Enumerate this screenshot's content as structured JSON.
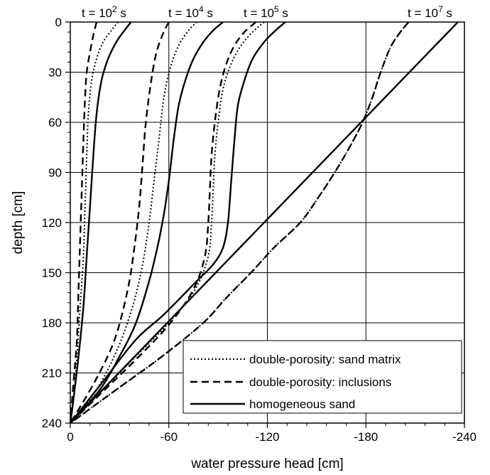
{
  "chart_data": {
    "type": "line",
    "xlabel": "water pressure head [cm]",
    "ylabel": "depth [cm]",
    "xlim": [
      0,
      -240
    ],
    "ylim": [
      0,
      240
    ],
    "x_ticks": [
      0,
      -60,
      -120,
      -180,
      -240
    ],
    "y_ticks": [
      0,
      30,
      60,
      90,
      120,
      150,
      180,
      210,
      240
    ],
    "grid": true,
    "legend_position": "bottom-right",
    "time_labels": [
      {
        "text": "t = 10",
        "exponent": "2",
        "unit": " s"
      },
      {
        "text": "t = 10",
        "exponent": "4",
        "unit": " s"
      },
      {
        "text": "t = 10",
        "exponent": "5",
        "unit": " s"
      },
      {
        "text": "t = 10",
        "exponent": "7",
        "unit": " s"
      }
    ],
    "legend": [
      {
        "label": "double-porosity: sand matrix",
        "style": "dotted"
      },
      {
        "label": "double-porosity: inclusions",
        "style": "dashed"
      },
      {
        "label": "homogeneous sand",
        "style": "solid"
      }
    ],
    "series": [
      {
        "name": "homogeneous sand",
        "style": "solid",
        "time": "1e2",
        "points": [
          [
            -37,
            0
          ],
          [
            -33,
            5
          ],
          [
            -28,
            12
          ],
          [
            -23,
            22
          ],
          [
            -19,
            35
          ],
          [
            -16,
            55
          ],
          [
            -14,
            80
          ],
          [
            -12,
            110
          ],
          [
            -10,
            140
          ],
          [
            -8,
            170
          ],
          [
            -5,
            200
          ],
          [
            -2,
            225
          ],
          [
            0,
            240
          ]
        ]
      },
      {
        "name": "double-porosity: sand matrix",
        "style": "dotted",
        "time": "1e2",
        "points": [
          [
            -29,
            0
          ],
          [
            -25,
            5
          ],
          [
            -20,
            12
          ],
          [
            -16,
            22
          ],
          [
            -13,
            35
          ],
          [
            -11,
            55
          ],
          [
            -10,
            80
          ],
          [
            -9,
            110
          ],
          [
            -8,
            140
          ],
          [
            -6,
            170
          ],
          [
            -4,
            200
          ],
          [
            -2,
            225
          ],
          [
            0,
            240
          ]
        ]
      },
      {
        "name": "double-porosity: inclusions",
        "style": "dashed",
        "time": "1e2",
        "points": [
          [
            -16,
            0
          ],
          [
            -14,
            8
          ],
          [
            -12,
            18
          ],
          [
            -10,
            30
          ],
          [
            -9,
            45
          ],
          [
            -8,
            70
          ],
          [
            -7,
            100
          ],
          [
            -6,
            130
          ],
          [
            -5,
            160
          ],
          [
            -4,
            190
          ],
          [
            -2,
            215
          ],
          [
            0,
            240
          ]
        ]
      },
      {
        "name": "homogeneous sand",
        "style": "solid",
        "time": "1e4",
        "points": [
          [
            -93,
            0
          ],
          [
            -87,
            5
          ],
          [
            -81,
            12
          ],
          [
            -75,
            22
          ],
          [
            -70,
            35
          ],
          [
            -66,
            50
          ],
          [
            -63,
            70
          ],
          [
            -60,
            95
          ],
          [
            -57,
            115
          ],
          [
            -53,
            135
          ],
          [
            -48,
            155
          ],
          [
            -40,
            180
          ],
          [
            -30,
            200
          ],
          [
            -18,
            220
          ],
          [
            0,
            240
          ]
        ]
      },
      {
        "name": "double-porosity: sand matrix",
        "style": "dotted",
        "time": "1e4",
        "points": [
          [
            -77,
            0
          ],
          [
            -72,
            5
          ],
          [
            -66,
            14
          ],
          [
            -61,
            27
          ],
          [
            -57,
            45
          ],
          [
            -54,
            70
          ],
          [
            -51,
            95
          ],
          [
            -48,
            120
          ],
          [
            -44,
            145
          ],
          [
            -38,
            170
          ],
          [
            -29,
            195
          ],
          [
            -16,
            220
          ],
          [
            0,
            240
          ]
        ]
      },
      {
        "name": "double-porosity: inclusions",
        "style": "dashed",
        "time": "1e4",
        "points": [
          [
            -60,
            0
          ],
          [
            -56,
            8
          ],
          [
            -52,
            20
          ],
          [
            -49,
            37
          ],
          [
            -46,
            60
          ],
          [
            -44,
            85
          ],
          [
            -42,
            110
          ],
          [
            -39,
            135
          ],
          [
            -35,
            160
          ],
          [
            -27,
            190
          ],
          [
            -15,
            215
          ],
          [
            0,
            240
          ]
        ]
      },
      {
        "name": "homogeneous sand",
        "style": "solid",
        "time": "1e5",
        "points": [
          [
            -131,
            0
          ],
          [
            -125,
            5
          ],
          [
            -118,
            12
          ],
          [
            -111,
            22
          ],
          [
            -106,
            35
          ],
          [
            -102,
            50
          ],
          [
            -100,
            70
          ],
          [
            -98,
            95
          ],
          [
            -96,
            120
          ],
          [
            -93,
            135
          ],
          [
            -87,
            145
          ],
          [
            -77,
            155
          ],
          [
            -57,
            175
          ],
          [
            -40,
            190
          ],
          [
            -20,
            215
          ],
          [
            0,
            240
          ]
        ]
      },
      {
        "name": "double-porosity: sand matrix",
        "style": "dotted",
        "time": "1e5",
        "points": [
          [
            -118,
            0
          ],
          [
            -111,
            6
          ],
          [
            -104,
            14
          ],
          [
            -98,
            25
          ],
          [
            -93,
            40
          ],
          [
            -90,
            60
          ],
          [
            -88,
            80
          ],
          [
            -87,
            100
          ],
          [
            -86,
            120
          ],
          [
            -84,
            140
          ],
          [
            -76,
            160
          ],
          [
            -60,
            180
          ],
          [
            -40,
            200
          ],
          [
            -20,
            220
          ],
          [
            0,
            240
          ]
        ]
      },
      {
        "name": "double-porosity: inclusions",
        "style": "dashed",
        "time": "1e5",
        "points": [
          [
            -113,
            0
          ],
          [
            -106,
            6
          ],
          [
            -100,
            14
          ],
          [
            -95,
            25
          ],
          [
            -91,
            40
          ],
          [
            -88,
            60
          ],
          [
            -86,
            80
          ],
          [
            -85,
            100
          ],
          [
            -84,
            120
          ],
          [
            -82,
            140
          ],
          [
            -75,
            160
          ],
          [
            -61,
            180
          ],
          [
            -42,
            200
          ],
          [
            -21,
            220
          ],
          [
            0,
            240
          ]
        ]
      },
      {
        "name": "homogeneous sand",
        "style": "solid",
        "time": "1e7",
        "points": [
          [
            -236,
            0
          ],
          [
            0,
            240
          ]
        ]
      },
      {
        "name": "double-porosity: sand matrix",
        "style": "dotted",
        "time": "1e7",
        "points": [
          [
            -206,
            0
          ],
          [
            -201,
            6
          ],
          [
            -195,
            15
          ],
          [
            -189,
            30
          ],
          [
            -184,
            45
          ],
          [
            -178,
            60
          ],
          [
            -170,
            75
          ],
          [
            -161,
            90
          ],
          [
            -151,
            105
          ],
          [
            -140,
            120
          ],
          [
            -124,
            135
          ],
          [
            -110,
            150
          ],
          [
            -95,
            165
          ],
          [
            -81,
            180
          ],
          [
            -56,
            200
          ],
          [
            -28,
            220
          ],
          [
            0,
            240
          ]
        ]
      },
      {
        "name": "double-porosity: inclusions",
        "style": "dashed",
        "time": "1e7",
        "points": [
          [
            -206,
            0
          ],
          [
            -201,
            6
          ],
          [
            -195,
            15
          ],
          [
            -189,
            30
          ],
          [
            -184,
            45
          ],
          [
            -178,
            60
          ],
          [
            -170,
            75
          ],
          [
            -161,
            90
          ],
          [
            -151,
            105
          ],
          [
            -140,
            120
          ],
          [
            -124,
            135
          ],
          [
            -110,
            150
          ],
          [
            -95,
            165
          ],
          [
            -81,
            180
          ],
          [
            -56,
            200
          ],
          [
            -28,
            220
          ],
          [
            0,
            240
          ]
        ]
      }
    ]
  }
}
